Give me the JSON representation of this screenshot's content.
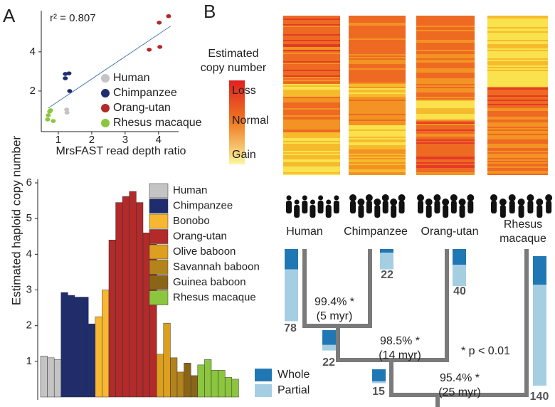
{
  "figure": {
    "panel_a": "A",
    "panel_b": "B",
    "ylabel": "Estimated haploid copy number"
  },
  "chart_data": [
    {
      "type": "scatter",
      "annotation": "r² = 0.807",
      "xlabel": "MrsFAST read depth ratio",
      "xlim": [
        0.49,
        4.6
      ],
      "xticks": [
        1,
        2,
        3,
        4
      ],
      "ylim": [
        0,
        6.1
      ],
      "yticks": [
        2,
        4
      ],
      "fit": {
        "color": "#4a7ab5",
        "x": [
          0.7,
          4.36
        ],
        "y": [
          1.13,
          5.31
        ]
      },
      "series": [
        {
          "name": "Human",
          "color": "#c4c4c4",
          "x": [
            1.25,
            1.26
          ],
          "y": [
            1.05,
            0.9
          ]
        },
        {
          "name": "Chimpanzee",
          "color": "#1f2d6e",
          "x": [
            1.21,
            1.32,
            1.21,
            1.34
          ],
          "y": [
            2.87,
            2.9,
            2.65,
            2.0
          ]
        },
        {
          "name": "Orang-utan",
          "color": "#b22a2a",
          "x": [
            4.3,
            4.02,
            3.72,
            4.04
          ],
          "y": [
            5.82,
            5.49,
            4.11,
            4.25
          ]
        },
        {
          "name": "Rhesus macaque",
          "color": "#8cc63f",
          "x": [
            0.74,
            0.68,
            0.85,
            0.7,
            0.77
          ],
          "y": [
            0.95,
            0.55,
            0.47,
            0.76,
            1.02
          ]
        }
      ]
    },
    {
      "type": "bar",
      "ylim": [
        0,
        6.1
      ],
      "yticks": [
        1,
        2,
        3,
        4,
        5,
        6
      ],
      "series": [
        {
          "name": "Human",
          "color": "#c4c4c4",
          "values": [
            1.15,
            1.1,
            1.05
          ]
        },
        {
          "name": "Chimpanzee",
          "color": "#1f2d6e",
          "values": [
            2.93,
            2.85,
            2.8,
            2.8,
            2.05
          ]
        },
        {
          "name": "Bonobo",
          "color": "#f7b731",
          "values": [
            2.25,
            3.0
          ]
        },
        {
          "name": "Orang-utan",
          "color": "#b22a2a",
          "values": [
            4.4,
            5.45,
            5.62,
            5.76,
            5.45,
            4.6,
            4.28
          ]
        },
        {
          "name": "Olive baboon",
          "color": "#dca01e",
          "values": [
            1.2,
            2.07
          ]
        },
        {
          "name": "Savannah baboon",
          "color": "#b3841c",
          "values": [
            1.1,
            0.7
          ]
        },
        {
          "name": "Guinea baboon",
          "color": "#8a6518",
          "values": [
            0.95,
            0.6
          ]
        },
        {
          "name": "Rhesus macaque",
          "color": "#8cc63f",
          "values": [
            0.9,
            1.05,
            0.75,
            0.75,
            0.55,
            0.5
          ]
        }
      ]
    }
  ],
  "heatmap": {
    "legend_title": [
      "Estimated",
      "copy number"
    ],
    "legend_labels": [
      "Loss",
      "Normal",
      "Gain"
    ],
    "species": [
      [
        "Human"
      ],
      [
        "Chimpanzee"
      ],
      [
        "Orang-utan"
      ],
      [
        "Rhesus",
        "macaque"
      ]
    ]
  },
  "tree": {
    "legend": [
      "Whole",
      "Partial"
    ],
    "colors": [
      "#1f78b4",
      "#a6cee3"
    ],
    "note": "* p < 0.01",
    "branch_labels": [
      [
        "99.4% *",
        "(5 myr)"
      ],
      [
        "98.5% *",
        "(14 myr)"
      ],
      [
        "95.4% *",
        "(25 myr)"
      ]
    ],
    "bars": [
      {
        "whole": 22,
        "partial": 56,
        "total": 78
      },
      {
        "whole": 4,
        "partial": 18,
        "total": 22
      },
      {
        "whole": 17,
        "partial": 23,
        "total": 40
      },
      {
        "whole": 31,
        "partial": 109,
        "total": 140
      },
      {
        "whole": 16,
        "partial": 6,
        "total": 22
      },
      {
        "whole": 13,
        "partial": 2,
        "total": 15
      }
    ]
  }
}
